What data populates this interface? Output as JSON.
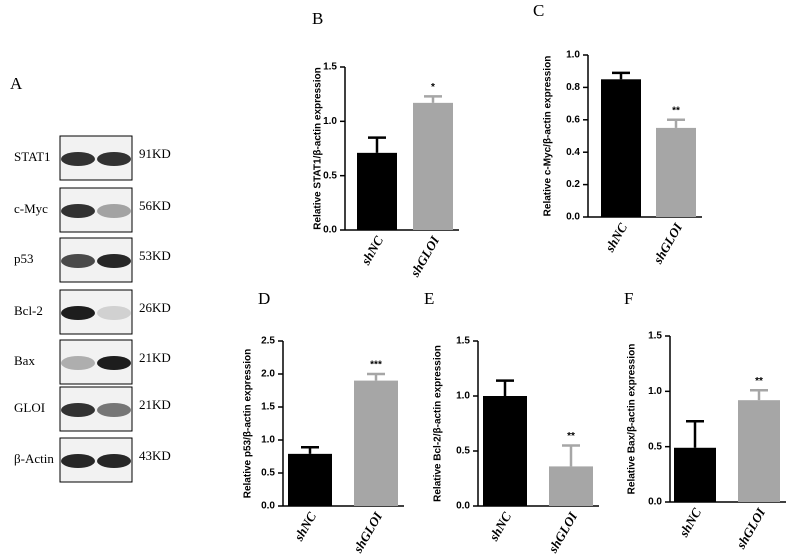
{
  "blot": {
    "label": "A",
    "rows": [
      {
        "protein": "STAT1",
        "size": "91KD"
      },
      {
        "protein": "c-Myc",
        "size": "56KD"
      },
      {
        "protein": "p53",
        "size": "53KD"
      },
      {
        "protein": "Bcl-2",
        "size": "26KD"
      },
      {
        "protein": "Bax",
        "size": "21KD"
      },
      {
        "protein": "GLOI",
        "size": "21KD"
      },
      {
        "protein": "β-Actin",
        "size": "43KD"
      }
    ]
  },
  "chart_data": [
    {
      "type": "bar",
      "panel": "B",
      "ylabel": "Relative STAT1/β-actin expression",
      "categories": [
        "shNC",
        "shGLOI"
      ],
      "values": [
        0.71,
        1.17
      ],
      "errors": [
        0.14,
        0.06
      ],
      "colors": [
        "#000000",
        "#a6a6a6"
      ],
      "annotation": "*",
      "ylim": [
        0,
        1.5
      ],
      "yticks": [
        {
          "value": 0,
          "label": "0.0"
        },
        0.5,
        {
          "value": 1,
          "label": "1.0"
        },
        1.5
      ]
    },
    {
      "type": "bar",
      "panel": "C",
      "ylabel": "Relative c-Myc/β-actin expression",
      "categories": [
        "shNC",
        "shGLOI"
      ],
      "values": [
        0.85,
        0.55
      ],
      "errors": [
        0.04,
        0.05
      ],
      "colors": [
        "#000000",
        "#a6a6a6"
      ],
      "annotation": "**",
      "ylim": [
        0,
        1
      ],
      "yticks": [
        {
          "value": 0,
          "label": "0.0"
        },
        0.2,
        0.4,
        0.6,
        0.8,
        {
          "value": 1,
          "label": "1.0"
        }
      ]
    },
    {
      "type": "bar",
      "panel": "D",
      "ylabel": "Relative p53/β-actin expression",
      "categories": [
        "shNC",
        "shGLOI"
      ],
      "values": [
        0.79,
        1.9
      ],
      "errors": [
        0.1,
        0.1
      ],
      "colors": [
        "#000000",
        "#a6a6a6"
      ],
      "annotation": "***",
      "ylim": [
        0,
        2.5
      ],
      "yticks": [
        {
          "value": 0,
          "label": "0.0"
        },
        0.5,
        {
          "value": 1,
          "label": "1.0"
        },
        1.5,
        {
          "value": 2,
          "label": "2.0"
        },
        2.5
      ]
    },
    {
      "type": "bar",
      "panel": "E",
      "ylabel": "Relative Bcl-2/β-actin expression",
      "categories": [
        "shNC",
        "shGLOI"
      ],
      "values": [
        1.0,
        0.36
      ],
      "errors": [
        0.14,
        0.19
      ],
      "colors": [
        "#000000",
        "#a6a6a6"
      ],
      "annotation": "**",
      "ylim": [
        0,
        1.5
      ],
      "yticks": [
        {
          "value": 0,
          "label": "0.0"
        },
        0.5,
        {
          "value": 1,
          "label": "1.0"
        },
        1.5
      ]
    },
    {
      "type": "bar",
      "panel": "F",
      "ylabel": "Relative Bax/β-actin expression",
      "categories": [
        "shNC",
        "shGLOI"
      ],
      "values": [
        0.49,
        0.92
      ],
      "errors": [
        0.24,
        0.09
      ],
      "colors": [
        "#000000",
        "#a6a6a6"
      ],
      "annotation": "**",
      "ylim": [
        0,
        1.5
      ],
      "yticks": [
        {
          "value": 0,
          "label": "0.0"
        },
        0.5,
        {
          "value": 1,
          "label": "1.0"
        },
        1.5
      ]
    }
  ]
}
